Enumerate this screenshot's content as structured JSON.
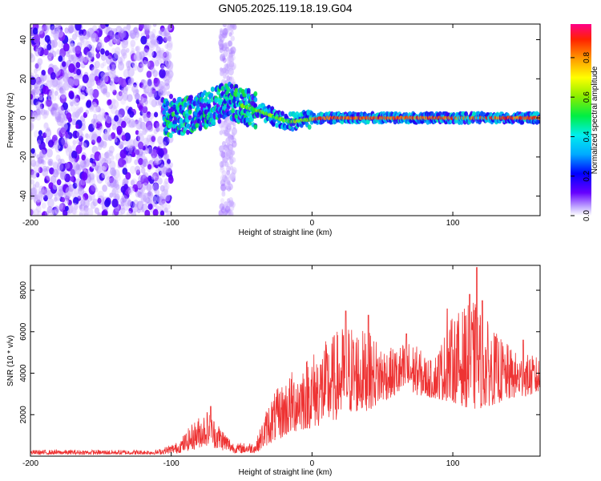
{
  "title": "GN05.2025.119.18.19.G04",
  "chart_data": [
    {
      "type": "heatmap",
      "xlabel": "Height of straight line (km)",
      "ylabel": "Frequency (Hz)",
      "xlim": [
        -200,
        162
      ],
      "ylim": [
        -50,
        48
      ],
      "xticks": [
        -200,
        -100,
        0,
        100
      ],
      "yticks": [
        -40,
        -20,
        0,
        20,
        40
      ],
      "colorbar": {
        "label": "Normalized spectral amplitude",
        "range": [
          0,
          0.97
        ],
        "ticks": [
          0.0,
          0.2,
          0.4,
          0.6,
          0.8
        ]
      },
      "ridge_frequency": [
        {
          "x": -100,
          "y": 0
        },
        {
          "x": -90,
          "y": 1
        },
        {
          "x": -80,
          "y": 3
        },
        {
          "x": -70,
          "y": 6
        },
        {
          "x": -60,
          "y": 9
        },
        {
          "x": -55,
          "y": 8
        },
        {
          "x": -45,
          "y": 5
        },
        {
          "x": -35,
          "y": 3
        },
        {
          "x": -25,
          "y": 0
        },
        {
          "x": -15,
          "y": -2
        },
        {
          "x": -5,
          "y": -1
        },
        {
          "x": 10,
          "y": 0
        },
        {
          "x": 40,
          "y": 0
        },
        {
          "x": 80,
          "y": 0
        },
        {
          "x": 120,
          "y": 0
        },
        {
          "x": 160,
          "y": 0
        }
      ]
    },
    {
      "type": "line",
      "xlabel": "Height of straight line (km)",
      "ylabel": "SNR (10 * v/v)",
      "xlim": [
        -200,
        162
      ],
      "ylim": [
        0,
        9200
      ],
      "xticks": [
        -200,
        -100,
        0,
        100
      ],
      "yticks": [
        2000,
        4000,
        6000,
        8000
      ],
      "series_color": "#ee3333",
      "envelope": [
        {
          "x": -200,
          "low": 80,
          "high": 300
        },
        {
          "x": -110,
          "low": 80,
          "high": 300
        },
        {
          "x": -95,
          "low": 150,
          "high": 700
        },
        {
          "x": -85,
          "low": 300,
          "high": 1600
        },
        {
          "x": -75,
          "low": 500,
          "high": 2300
        },
        {
          "x": -65,
          "low": 300,
          "high": 1500
        },
        {
          "x": -55,
          "low": 150,
          "high": 600
        },
        {
          "x": -40,
          "low": 150,
          "high": 700
        },
        {
          "x": -30,
          "low": 600,
          "high": 2800
        },
        {
          "x": -10,
          "low": 1200,
          "high": 4500
        },
        {
          "x": 10,
          "low": 1500,
          "high": 5600
        },
        {
          "x": 25,
          "low": 2000,
          "high": 6500
        },
        {
          "x": 40,
          "low": 2200,
          "high": 6000
        },
        {
          "x": 55,
          "low": 2800,
          "high": 5200
        },
        {
          "x": 70,
          "low": 3000,
          "high": 5600
        },
        {
          "x": 85,
          "low": 2800,
          "high": 4600
        },
        {
          "x": 100,
          "low": 2600,
          "high": 6800
        },
        {
          "x": 115,
          "low": 2200,
          "high": 7500
        },
        {
          "x": 130,
          "low": 2500,
          "high": 6000
        },
        {
          "x": 145,
          "low": 2800,
          "high": 5000
        },
        {
          "x": 162,
          "low": 3000,
          "high": 4800
        }
      ],
      "peaks": [
        {
          "x": -72,
          "y": 2400
        },
        {
          "x": 24,
          "y": 7000
        },
        {
          "x": 40,
          "y": 6800
        },
        {
          "x": 67,
          "y": 5900
        },
        {
          "x": 96,
          "y": 7100
        },
        {
          "x": 112,
          "y": 7800
        },
        {
          "x": 117,
          "y": 9100
        },
        {
          "x": 121,
          "y": 7500
        },
        {
          "x": 150,
          "y": 5600
        }
      ]
    }
  ]
}
